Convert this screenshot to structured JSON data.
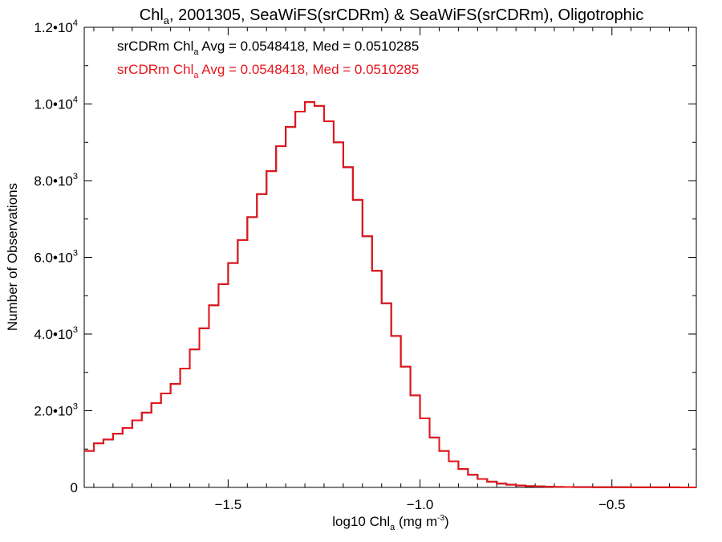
{
  "chart_data": {
    "type": "line",
    "step": true,
    "title": {
      "main": "Chl",
      "sub": "a",
      "rest": ", 2001305, SeaWiFS(srCDRm) & SeaWiFS(srCDRm), Oligotrophic"
    },
    "xlabel": {
      "main": "log10 Chl",
      "sub": "a",
      "rest": " (mg m",
      "sup": "-3",
      "end": ")"
    },
    "ylabel": "Number of Observations",
    "xlim": [
      -1.875,
      -0.28
    ],
    "ylim": [
      0,
      12000
    ],
    "xticks": [
      {
        "value": -1.5,
        "label": "−1.5"
      },
      {
        "value": -1.0,
        "label": "−1.0"
      },
      {
        "value": -0.5,
        "label": "−0.5"
      }
    ],
    "yticks": [
      {
        "value": 0,
        "label": "0",
        "exp": ""
      },
      {
        "value": 2000,
        "label": "2.0•10",
        "exp": "3"
      },
      {
        "value": 4000,
        "label": "4.0•10",
        "exp": "3"
      },
      {
        "value": 6000,
        "label": "6.0•10",
        "exp": "3"
      },
      {
        "value": 8000,
        "label": "8.0•10",
        "exp": "3"
      },
      {
        "value": 10000,
        "label": "1.0•10",
        "exp": "4"
      },
      {
        "value": 12000,
        "label": "1.2•10",
        "exp": "4"
      }
    ],
    "grid": false,
    "legend_position": "top-left",
    "annotations": [
      {
        "color": "#000000",
        "pre": "srCDRm Chl",
        "sub": "a",
        "post": " Avg = 0.0548418, Med = 0.0510285"
      },
      {
        "color": "#e8141b",
        "pre": "srCDRm Chl",
        "sub": "a",
        "post": " Avg = 0.0548418, Med = 0.0510285"
      }
    ],
    "x": [
      -1.875,
      -1.85,
      -1.825,
      -1.8,
      -1.775,
      -1.75,
      -1.725,
      -1.7,
      -1.675,
      -1.65,
      -1.625,
      -1.6,
      -1.575,
      -1.55,
      -1.525,
      -1.5,
      -1.475,
      -1.45,
      -1.425,
      -1.4,
      -1.375,
      -1.35,
      -1.325,
      -1.3,
      -1.275,
      -1.25,
      -1.225,
      -1.2,
      -1.175,
      -1.15,
      -1.125,
      -1.1,
      -1.075,
      -1.05,
      -1.025,
      -1.0,
      -0.975,
      -0.95,
      -0.925,
      -0.9,
      -0.875,
      -0.85,
      -0.825,
      -0.8,
      -0.775,
      -0.75,
      -0.725,
      -0.7,
      -0.675,
      -0.65,
      -0.625,
      -0.6,
      -0.575,
      -0.55,
      -0.525,
      -0.5,
      -0.475,
      -0.45,
      -0.425,
      -0.4,
      -0.375,
      -0.35,
      -0.325,
      -0.3,
      -0.28
    ],
    "series": [
      {
        "color": "#000000",
        "values": [
          950,
          1150,
          1250,
          1400,
          1550,
          1750,
          1950,
          2200,
          2450,
          2700,
          3100,
          3600,
          4150,
          4750,
          5300,
          5850,
          6450,
          7050,
          7650,
          8250,
          8900,
          9400,
          9800,
          10050,
          9950,
          9550,
          9000,
          8350,
          7500,
          6550,
          5650,
          4800,
          3950,
          3150,
          2400,
          1800,
          1300,
          950,
          680,
          480,
          330,
          220,
          150,
          100,
          70,
          50,
          35,
          25,
          18,
          14,
          11,
          9,
          7,
          6,
          5,
          4,
          4,
          3,
          3,
          2,
          2,
          2,
          1,
          1,
          1
        ]
      },
      {
        "color": "#e8141b",
        "values": [
          950,
          1150,
          1250,
          1400,
          1550,
          1750,
          1950,
          2200,
          2450,
          2700,
          3100,
          3600,
          4150,
          4750,
          5300,
          5850,
          6450,
          7050,
          7650,
          8250,
          8900,
          9400,
          9800,
          10050,
          9950,
          9550,
          9000,
          8350,
          7500,
          6550,
          5650,
          4800,
          3950,
          3150,
          2400,
          1800,
          1300,
          950,
          680,
          480,
          330,
          220,
          150,
          100,
          70,
          50,
          35,
          25,
          18,
          14,
          11,
          9,
          7,
          6,
          5,
          4,
          4,
          3,
          3,
          2,
          2,
          2,
          1,
          1,
          1
        ]
      }
    ]
  }
}
